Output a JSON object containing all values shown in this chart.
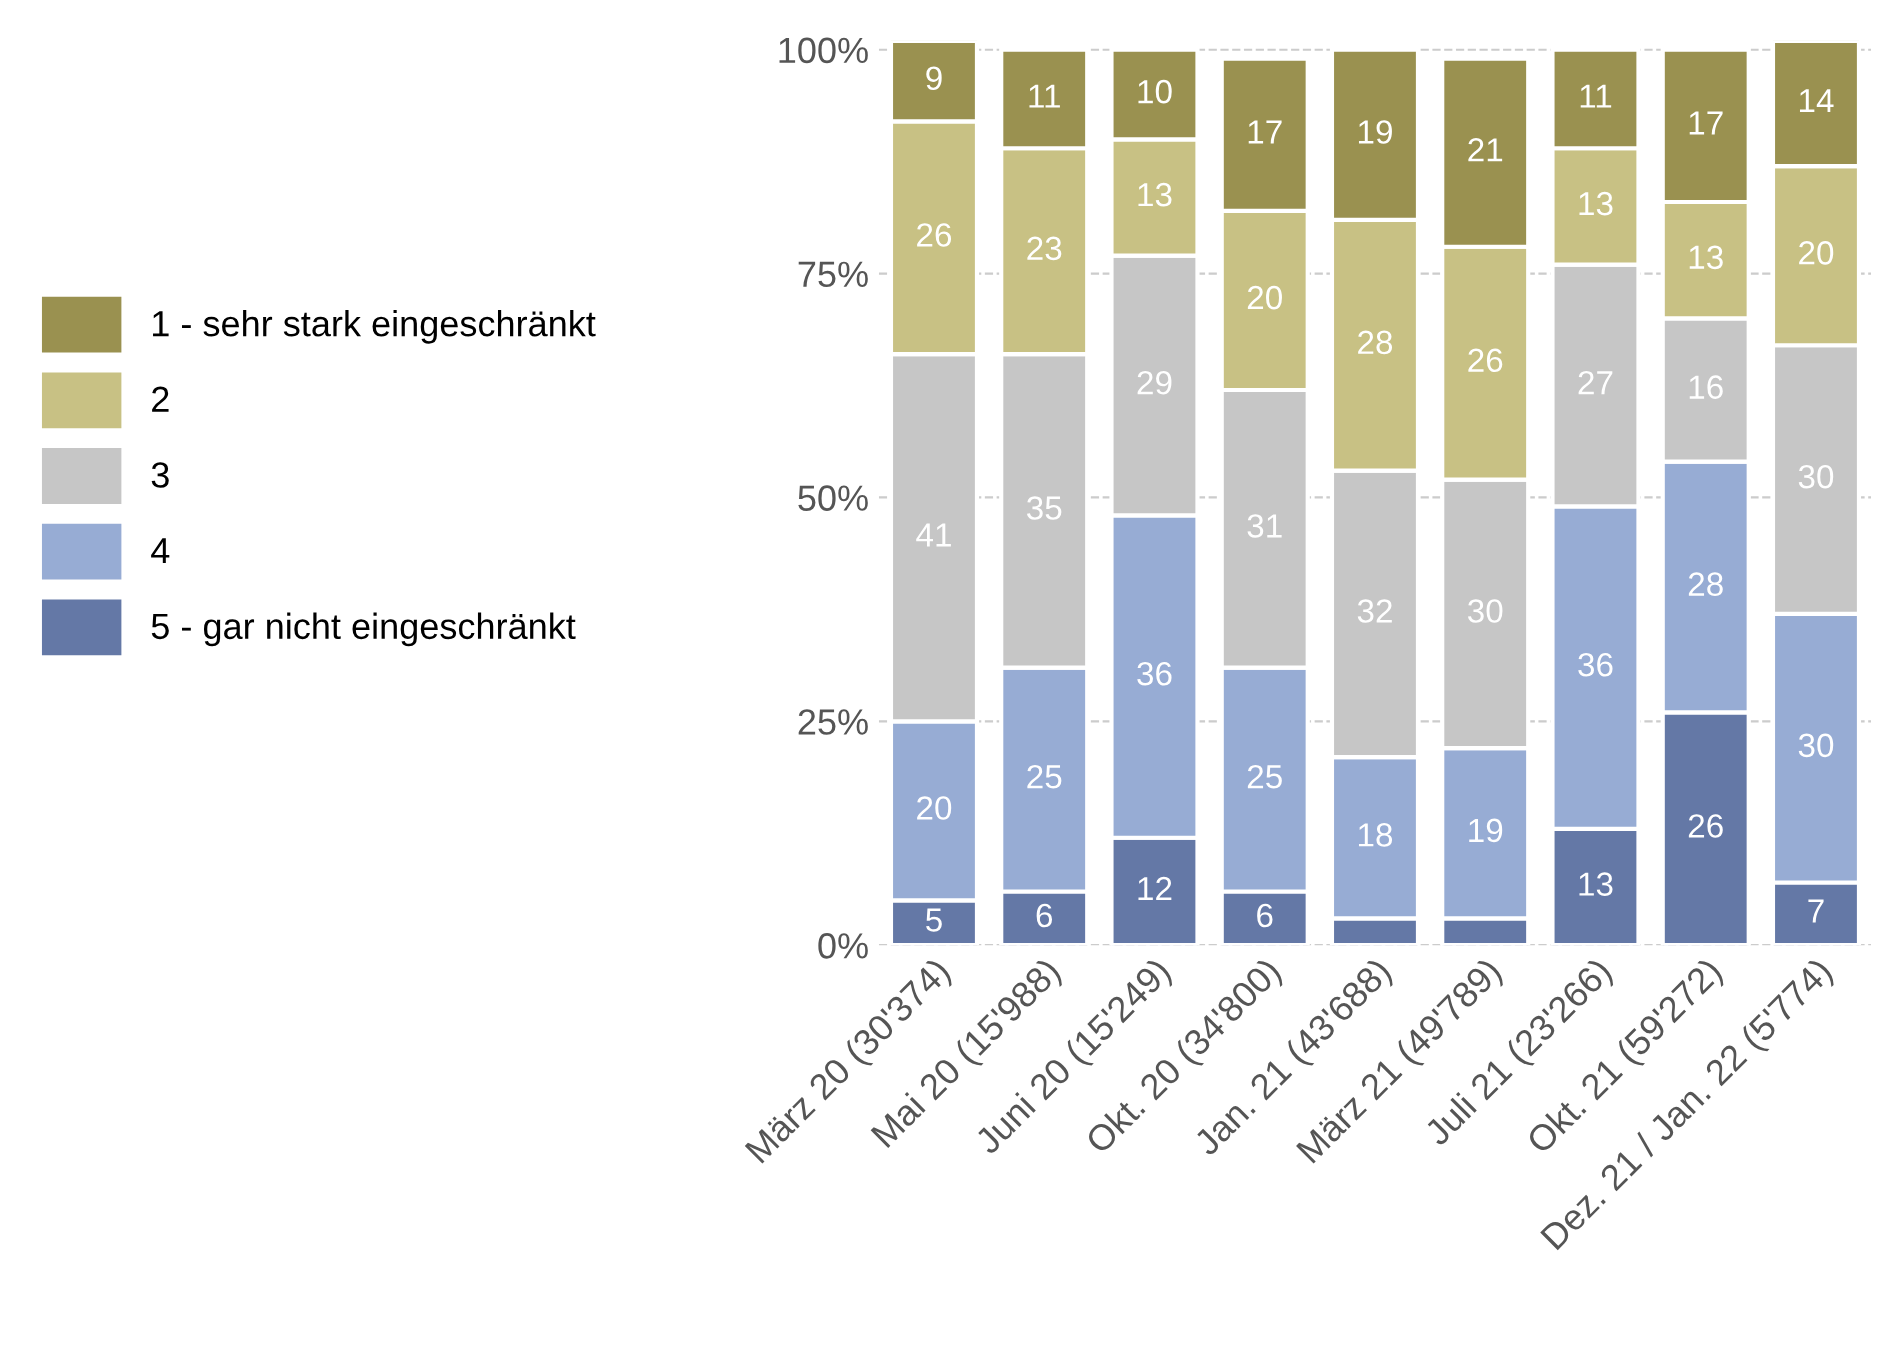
{
  "chart_data": {
    "type": "bar",
    "stacked": true,
    "categories": [
      "März 20 (30'374)",
      "Mai 20 (15'988)",
      "Juni 20 (15'249)",
      "Okt. 20 (34'800)",
      "Jan. 21 (43'688)",
      "März 21 (49'789)",
      "Juli 21 (23'266)",
      "Okt. 21 (59'272)",
      "Dez. 21 / Jan. 22 (5'774)"
    ],
    "series": [
      {
        "name": "5 - gar nicht eingeschränkt",
        "color": "#6478a6",
        "values": [
          5,
          6,
          12,
          6,
          3,
          3,
          13,
          26,
          7
        ],
        "value_labels": [
          "5",
          "6",
          "12",
          "6",
          null,
          null,
          "13",
          "26",
          "7"
        ]
      },
      {
        "name": "4",
        "color": "#97acd4",
        "values": [
          20,
          25,
          36,
          25,
          18,
          19,
          36,
          28,
          30
        ],
        "value_labels": [
          "20",
          "25",
          "36",
          "25",
          "18",
          "19",
          "36",
          "28",
          "30"
        ]
      },
      {
        "name": "3",
        "color": "#c6c6c6",
        "values": [
          41,
          35,
          29,
          31,
          32,
          30,
          27,
          16,
          30
        ],
        "value_labels": [
          "41",
          "35",
          "29",
          "31",
          "32",
          "30",
          "27",
          "16",
          "30"
        ]
      },
      {
        "name": "2",
        "color": "#c8c184",
        "values": [
          26,
          23,
          13,
          20,
          28,
          26,
          13,
          13,
          20
        ],
        "value_labels": [
          "26",
          "23",
          "13",
          "20",
          "28",
          "26",
          "13",
          "13",
          "20"
        ]
      },
      {
        "name": "1 - sehr stark eingeschränkt",
        "color": "#9a9150",
        "values": [
          9,
          11,
          10,
          17,
          19,
          21,
          11,
          17,
          14
        ],
        "value_labels": [
          "9",
          "11",
          "10",
          "17",
          "19",
          "21",
          "11",
          "17",
          "14"
        ]
      }
    ],
    "ylim": [
      0,
      101
    ],
    "yticks": [
      {
        "value": 0,
        "label": "0%"
      },
      {
        "value": 25,
        "label": "25%"
      },
      {
        "value": 50,
        "label": "50%"
      },
      {
        "value": 75,
        "label": "75%"
      },
      {
        "value": 100,
        "label": "100%"
      }
    ],
    "grid": "y",
    "legend": "left"
  }
}
